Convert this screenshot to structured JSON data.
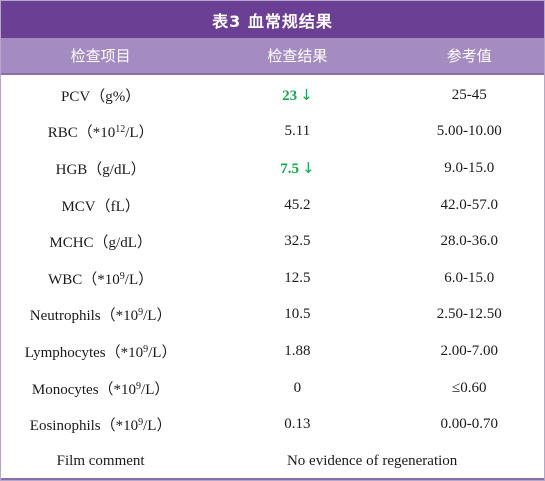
{
  "table": {
    "title": "表3 血常规结果",
    "headers": [
      "检查项目",
      "检查结果",
      "参考值"
    ],
    "rows": [
      {
        "name": "PCV（g%）",
        "result": "23",
        "flag": "↓",
        "reference": "25-45"
      },
      {
        "name_prefix": "RBC（*10",
        "name_sup": "12",
        "name_suffix": "/L）",
        "result": "5.11",
        "flag": "",
        "reference": "5.00-10.00"
      },
      {
        "name": "HGB（g/dL）",
        "result": "7.5",
        "flag": "↓",
        "reference": "9.0-15.0"
      },
      {
        "name": "MCV（fL）",
        "result": "45.2",
        "flag": "",
        "reference": "42.0-57.0"
      },
      {
        "name": "MCHC（g/dL）",
        "result": "32.5",
        "flag": "",
        "reference": "28.0-36.0"
      },
      {
        "name_prefix": "WBC（*10",
        "name_sup": "9",
        "name_suffix": "/L）",
        "result": "12.5",
        "flag": "",
        "reference": "6.0-15.0"
      },
      {
        "name_prefix": "Neutrophils（*10",
        "name_sup": "9",
        "name_suffix": "/L）",
        "result": "10.5",
        "flag": "",
        "reference": "2.50-12.50"
      },
      {
        "name_prefix": "Lymphocytes（*10",
        "name_sup": "9",
        "name_suffix": "/L）",
        "result": "1.88",
        "flag": "",
        "reference": "2.00-7.00"
      },
      {
        "name_prefix": "Monocytes（*10",
        "name_sup": "9",
        "name_suffix": "/L）",
        "result": "0",
        "flag": "",
        "reference": "≤0.60"
      },
      {
        "name_prefix": "Eosinophils（*10",
        "name_sup": "9",
        "name_suffix": "/L）",
        "result": "0.13",
        "flag": "",
        "reference": "0.00-0.70"
      }
    ],
    "film_comment": {
      "label": "Film comment",
      "value": "No evidence of regeneration"
    }
  },
  "colors": {
    "title_bg": "#6b3f93",
    "header_bg": "#a58cc0",
    "flag_color": "#1aa64a"
  }
}
